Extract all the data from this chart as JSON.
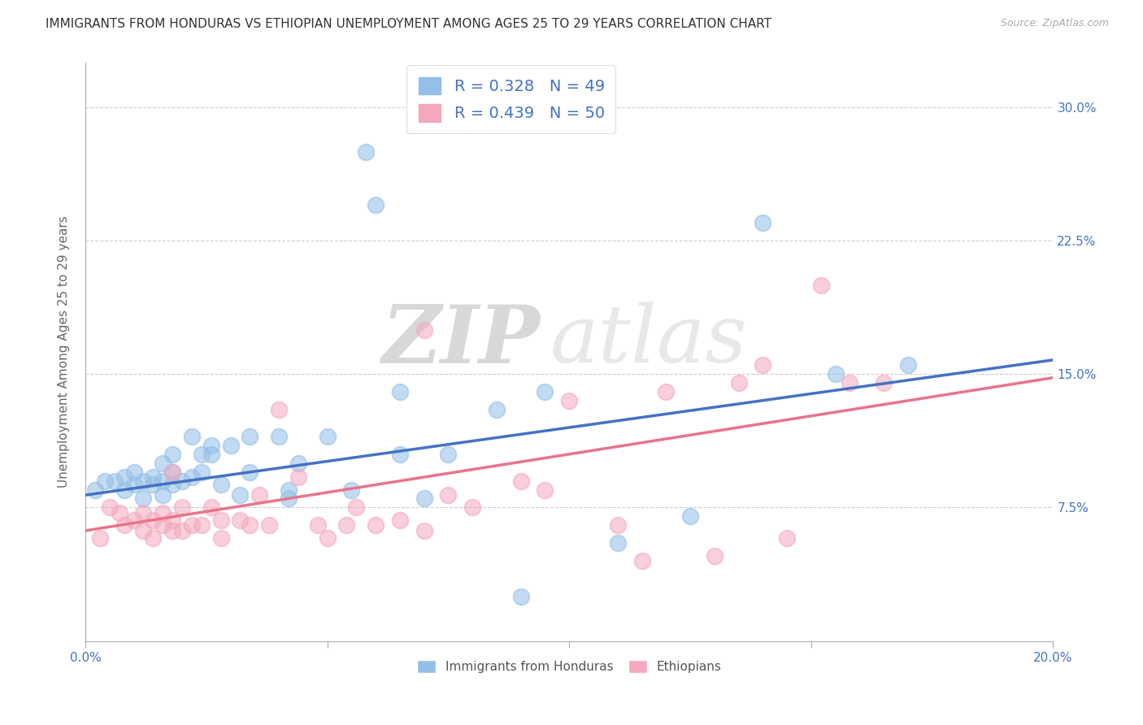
{
  "title": "IMMIGRANTS FROM HONDURAS VS ETHIOPIAN UNEMPLOYMENT AMONG AGES 25 TO 29 YEARS CORRELATION CHART",
  "source": "Source: ZipAtlas.com",
  "ylabel": "Unemployment Among Ages 25 to 29 years",
  "xlim": [
    0.0,
    0.2
  ],
  "ylim": [
    0.0,
    0.325
  ],
  "blue_color": "#93bfe8",
  "pink_color": "#f4a8be",
  "blue_line_color": "#4472c4",
  "pink_line_color": "#e8748a",
  "legend_label_blue": "Immigrants from Honduras",
  "legend_label_pink": "Ethiopians",
  "watermark_zip": "ZIP",
  "watermark_atlas": "atlas",
  "blue_R": 0.328,
  "blue_N": 49,
  "pink_R": 0.439,
  "pink_N": 50,
  "blue_scatter_x": [
    0.002,
    0.004,
    0.006,
    0.008,
    0.008,
    0.01,
    0.01,
    0.012,
    0.012,
    0.014,
    0.014,
    0.016,
    0.016,
    0.016,
    0.018,
    0.018,
    0.018,
    0.02,
    0.022,
    0.022,
    0.024,
    0.024,
    0.026,
    0.026,
    0.028,
    0.03,
    0.032,
    0.034,
    0.034,
    0.04,
    0.042,
    0.042,
    0.044,
    0.05,
    0.055,
    0.058,
    0.06,
    0.065,
    0.065,
    0.07,
    0.075,
    0.085,
    0.09,
    0.095,
    0.11,
    0.125,
    0.14,
    0.155,
    0.17
  ],
  "blue_scatter_y": [
    0.085,
    0.09,
    0.09,
    0.092,
    0.085,
    0.088,
    0.095,
    0.09,
    0.08,
    0.092,
    0.088,
    0.082,
    0.09,
    0.1,
    0.095,
    0.088,
    0.105,
    0.09,
    0.092,
    0.115,
    0.095,
    0.105,
    0.105,
    0.11,
    0.088,
    0.11,
    0.082,
    0.095,
    0.115,
    0.115,
    0.085,
    0.08,
    0.1,
    0.115,
    0.085,
    0.275,
    0.245,
    0.14,
    0.105,
    0.08,
    0.105,
    0.13,
    0.025,
    0.14,
    0.055,
    0.07,
    0.235,
    0.15,
    0.155
  ],
  "pink_scatter_x": [
    0.003,
    0.005,
    0.007,
    0.008,
    0.01,
    0.012,
    0.012,
    0.014,
    0.014,
    0.016,
    0.016,
    0.018,
    0.018,
    0.018,
    0.02,
    0.02,
    0.022,
    0.024,
    0.026,
    0.028,
    0.028,
    0.032,
    0.034,
    0.036,
    0.038,
    0.04,
    0.044,
    0.048,
    0.05,
    0.054,
    0.056,
    0.06,
    0.065,
    0.07,
    0.07,
    0.075,
    0.08,
    0.09,
    0.095,
    0.1,
    0.11,
    0.115,
    0.12,
    0.13,
    0.135,
    0.14,
    0.145,
    0.152,
    0.158,
    0.165
  ],
  "pink_scatter_y": [
    0.058,
    0.075,
    0.072,
    0.065,
    0.068,
    0.072,
    0.062,
    0.068,
    0.058,
    0.072,
    0.065,
    0.068,
    0.062,
    0.095,
    0.075,
    0.062,
    0.065,
    0.065,
    0.075,
    0.058,
    0.068,
    0.068,
    0.065,
    0.082,
    0.065,
    0.13,
    0.092,
    0.065,
    0.058,
    0.065,
    0.075,
    0.065,
    0.068,
    0.062,
    0.175,
    0.082,
    0.075,
    0.09,
    0.085,
    0.135,
    0.065,
    0.045,
    0.14,
    0.048,
    0.145,
    0.155,
    0.058,
    0.2,
    0.145,
    0.145
  ],
  "blue_line_x": [
    0.0,
    0.2
  ],
  "blue_line_y": [
    0.082,
    0.158
  ],
  "pink_line_x": [
    0.0,
    0.2
  ],
  "pink_line_y": [
    0.062,
    0.148
  ],
  "background_color": "#ffffff",
  "grid_color": "#c8c8c8",
  "title_fontsize": 11,
  "axis_label_fontsize": 11,
  "tick_fontsize": 11,
  "legend_fontsize": 14
}
